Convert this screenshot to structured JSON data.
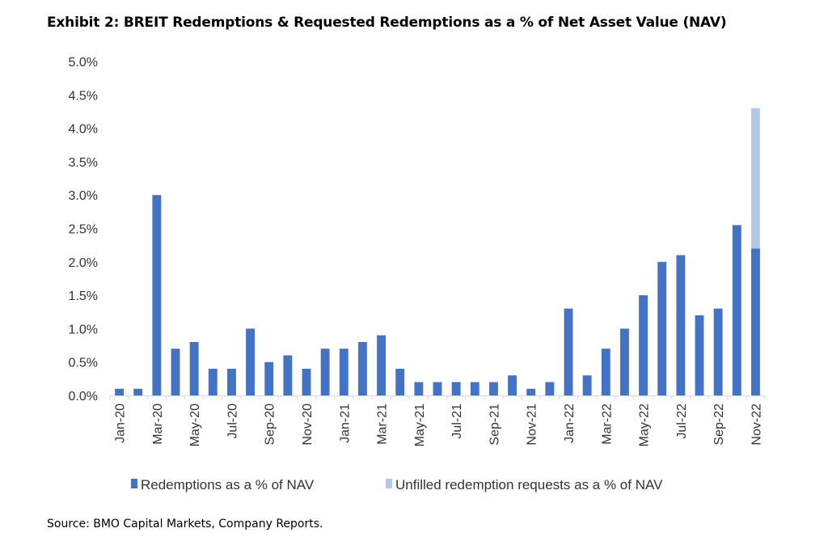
{
  "title": "Exhibit 2: BREIT Redemptions & Requested Redemptions as a % of Net Asset Value (NAV)",
  "source": "Source: BMO Capital Markets, Company Reports.",
  "chart_data": {
    "type": "bar",
    "stacked": true,
    "categories": [
      "Jan-20",
      "Feb-20",
      "Mar-20",
      "Apr-20",
      "May-20",
      "Jun-20",
      "Jul-20",
      "Aug-20",
      "Sep-20",
      "Oct-20",
      "Nov-20",
      "Dec-20",
      "Jan-21",
      "Feb-21",
      "Mar-21",
      "Apr-21",
      "May-21",
      "Jun-21",
      "Jul-21",
      "Aug-21",
      "Sep-21",
      "Oct-21",
      "Nov-21",
      "Dec-21",
      "Jan-22",
      "Feb-22",
      "Mar-22",
      "Apr-22",
      "May-22",
      "Jun-22",
      "Jul-22",
      "Aug-22",
      "Sep-22",
      "Oct-22",
      "Nov-22"
    ],
    "tick_labels": [
      "Jan-20",
      "",
      "Mar-20",
      "",
      "May-20",
      "",
      "Jul-20",
      "",
      "Sep-20",
      "",
      "Nov-20",
      "",
      "Jan-21",
      "",
      "Mar-21",
      "",
      "May-21",
      "",
      "Jul-21",
      "",
      "Sep-21",
      "",
      "Nov-21",
      "",
      "Jan-22",
      "",
      "Mar-22",
      "",
      "May-22",
      "",
      "Jul-22",
      "",
      "Sep-22",
      "",
      "Nov-22"
    ],
    "series": [
      {
        "name": "Redemptions as a % of NAV",
        "color": "#4472c4",
        "values": [
          0.1,
          0.1,
          3.0,
          0.7,
          0.8,
          0.4,
          0.4,
          1.0,
          0.5,
          0.6,
          0.4,
          0.7,
          0.7,
          0.8,
          0.9,
          0.4,
          0.2,
          0.2,
          0.2,
          0.2,
          0.2,
          0.3,
          0.1,
          0.2,
          1.3,
          0.3,
          0.7,
          1.0,
          1.5,
          2.0,
          2.1,
          1.2,
          1.3,
          2.55,
          2.2
        ]
      },
      {
        "name": "Unfilled redemption requests as a % of NAV",
        "color": "#b4c7e7",
        "values": [
          0,
          0,
          0,
          0,
          0,
          0,
          0,
          0,
          0,
          0,
          0,
          0,
          0,
          0,
          0,
          0,
          0,
          0,
          0,
          0,
          0,
          0,
          0,
          0,
          0,
          0,
          0,
          0,
          0,
          0,
          0,
          0,
          0,
          0,
          2.1
        ]
      }
    ],
    "y_ticks": [
      "0.0%",
      "0.5%",
      "1.0%",
      "1.5%",
      "2.0%",
      "2.5%",
      "3.0%",
      "3.5%",
      "4.0%",
      "4.5%",
      "5.0%"
    ],
    "ylim": [
      0,
      5.0
    ],
    "grid": false,
    "legend": "bottom"
  }
}
